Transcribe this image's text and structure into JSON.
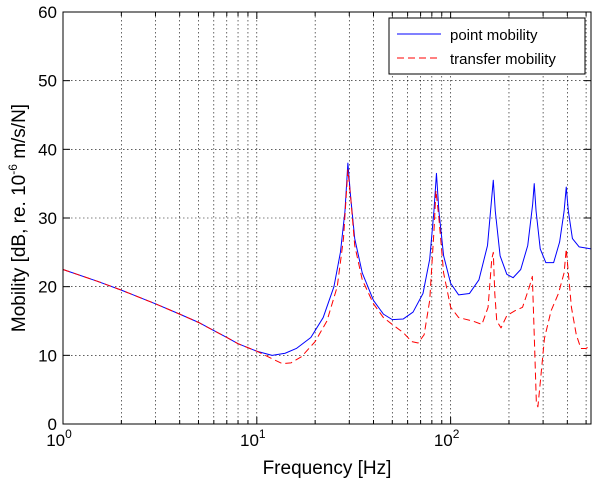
{
  "chart_data": {
    "type": "line",
    "x_scale": "log",
    "xlim": [
      1,
      530
    ],
    "ylim": [
      0,
      60
    ],
    "grid": true,
    "legend_position": "top-right",
    "xlabel": "Frequency  [Hz]",
    "ylabel": {
      "prefix": "Mobility  [dB, re. 10",
      "exponent": "-6",
      "suffix": " m/s/N]"
    },
    "x_ticks": [
      {
        "value": 1,
        "base": "10",
        "exp": "0"
      },
      {
        "value": 10,
        "base": "10",
        "exp": "1"
      },
      {
        "value": 100,
        "base": "10",
        "exp": "2"
      }
    ],
    "y_ticks": [
      0,
      10,
      20,
      30,
      40,
      50,
      60
    ],
    "series": [
      {
        "name": "point mobility",
        "color": "#0000ff",
        "dash": "solid",
        "points": [
          [
            1,
            22.5
          ],
          [
            1.5,
            20.8
          ],
          [
            2,
            19.5
          ],
          [
            3,
            17.5
          ],
          [
            4,
            16.0
          ],
          [
            5,
            14.8
          ],
          [
            6,
            13.6
          ],
          [
            7,
            12.6
          ],
          [
            8,
            11.7
          ],
          [
            10,
            10.6
          ],
          [
            12,
            10.0
          ],
          [
            14,
            10.3
          ],
          [
            16,
            11.0
          ],
          [
            19,
            12.6
          ],
          [
            22,
            15.5
          ],
          [
            25,
            20.0
          ],
          [
            27,
            25.0
          ],
          [
            28.5,
            31.0
          ],
          [
            29.5,
            38.0
          ],
          [
            30.5,
            33.0
          ],
          [
            32,
            27.0
          ],
          [
            35,
            22.0
          ],
          [
            40,
            18.0
          ],
          [
            45,
            16.0
          ],
          [
            50,
            15.2
          ],
          [
            57,
            15.3
          ],
          [
            64,
            16.3
          ],
          [
            72,
            19.0
          ],
          [
            78,
            24.0
          ],
          [
            82,
            31.0
          ],
          [
            84.5,
            36.5
          ],
          [
            87,
            31.0
          ],
          [
            92,
            24.5
          ],
          [
            100,
            20.5
          ],
          [
            110,
            18.8
          ],
          [
            125,
            19.0
          ],
          [
            140,
            21.0
          ],
          [
            155,
            26.0
          ],
          [
            163,
            33.0
          ],
          [
            166,
            35.5
          ],
          [
            170,
            31.0
          ],
          [
            180,
            24.5
          ],
          [
            195,
            21.8
          ],
          [
            210,
            21.3
          ],
          [
            230,
            22.5
          ],
          [
            250,
            26.0
          ],
          [
            265,
            32.0
          ],
          [
            270,
            35.0
          ],
          [
            276,
            31.0
          ],
          [
            290,
            25.5
          ],
          [
            310,
            23.5
          ],
          [
            340,
            23.5
          ],
          [
            365,
            26.5
          ],
          [
            385,
            31.0
          ],
          [
            395,
            34.5
          ],
          [
            405,
            31.0
          ],
          [
            425,
            27.0
          ],
          [
            460,
            25.8
          ],
          [
            530,
            25.5
          ]
        ]
      },
      {
        "name": "transfer mobility",
        "color": "#ff0000",
        "dash": "dashed",
        "points": [
          [
            1,
            22.5
          ],
          [
            1.5,
            20.8
          ],
          [
            2,
            19.5
          ],
          [
            3,
            17.5
          ],
          [
            4,
            16.0
          ],
          [
            5,
            14.8
          ],
          [
            6,
            13.6
          ],
          [
            7,
            12.6
          ],
          [
            8,
            11.7
          ],
          [
            10,
            10.6
          ],
          [
            12,
            9.5
          ],
          [
            13.5,
            8.8
          ],
          [
            15,
            8.9
          ],
          [
            17,
            9.8
          ],
          [
            20,
            12.0
          ],
          [
            23,
            15.0
          ],
          [
            26,
            20.0
          ],
          [
            28,
            27.0
          ],
          [
            29.5,
            37.0
          ],
          [
            30.5,
            33.0
          ],
          [
            32,
            26.0
          ],
          [
            35,
            21.0
          ],
          [
            40,
            17.5
          ],
          [
            45,
            15.5
          ],
          [
            50,
            14.5
          ],
          [
            57,
            13.3
          ],
          [
            63,
            12.0
          ],
          [
            68,
            11.8
          ],
          [
            73,
            13.0
          ],
          [
            78,
            18.0
          ],
          [
            82,
            28.0
          ],
          [
            84,
            34.0
          ],
          [
            87,
            30.0
          ],
          [
            92,
            22.0
          ],
          [
            100,
            17.0
          ],
          [
            110,
            15.5
          ],
          [
            130,
            15.0
          ],
          [
            145,
            14.5
          ],
          [
            156,
            17.0
          ],
          [
            163,
            24.0
          ],
          [
            166,
            25.0
          ],
          [
            169,
            19.0
          ],
          [
            173,
            15.0
          ],
          [
            182,
            14.0
          ],
          [
            195,
            15.8
          ],
          [
            215,
            16.5
          ],
          [
            235,
            17.0
          ],
          [
            255,
            20.0
          ],
          [
            264,
            21.5
          ],
          [
            270,
            13.0
          ],
          [
            277,
            3.0
          ],
          [
            282,
            2.5
          ],
          [
            290,
            6.0
          ],
          [
            305,
            12.5
          ],
          [
            330,
            16.5
          ],
          [
            360,
            19.0
          ],
          [
            385,
            22.0
          ],
          [
            395,
            25.5
          ],
          [
            405,
            22.0
          ],
          [
            420,
            17.0
          ],
          [
            445,
            13.0
          ],
          [
            470,
            11.0
          ],
          [
            500,
            11.0
          ],
          [
            530,
            11.5
          ]
        ]
      }
    ]
  }
}
